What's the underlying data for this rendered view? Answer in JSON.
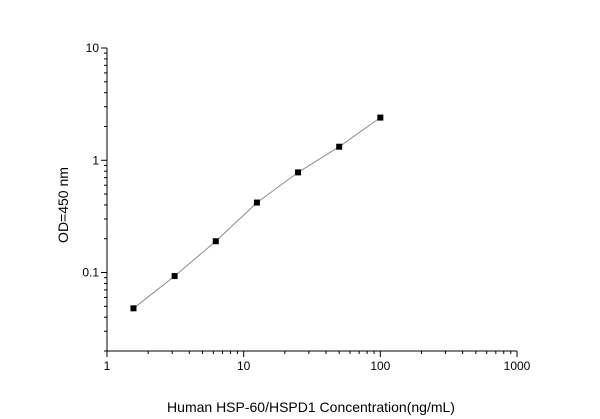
{
  "chart_data": {
    "type": "scatter",
    "xlabel": "Human HSP-60/HSPD1  Concentration(ng/mL)",
    "ylabel": "OD=450 nm",
    "x_scale": "log",
    "y_scale": "log",
    "xlim": [
      1,
      1000
    ],
    "ylim": [
      0.02,
      10
    ],
    "x_ticks": [
      {
        "value": 1,
        "label": "1"
      },
      {
        "value": 10,
        "label": "10"
      },
      {
        "value": 100,
        "label": "100"
      },
      {
        "value": 1000,
        "label": "1000"
      }
    ],
    "y_ticks": [
      {
        "value": 0.1,
        "label": "0.1"
      },
      {
        "value": 1,
        "label": "1"
      },
      {
        "value": 10,
        "label": "10"
      }
    ],
    "grid": false,
    "marker": "square",
    "connect_points": true,
    "series": [
      {
        "x": [
          1.5625,
          3.125,
          6.25,
          12.5,
          25,
          50,
          100
        ],
        "y": [
          0.048,
          0.093,
          0.19,
          0.42,
          0.78,
          1.32,
          2.4
        ]
      }
    ],
    "colors": {
      "marker": "#000000",
      "line": "#8c8c8c",
      "axis": "#000000"
    }
  }
}
